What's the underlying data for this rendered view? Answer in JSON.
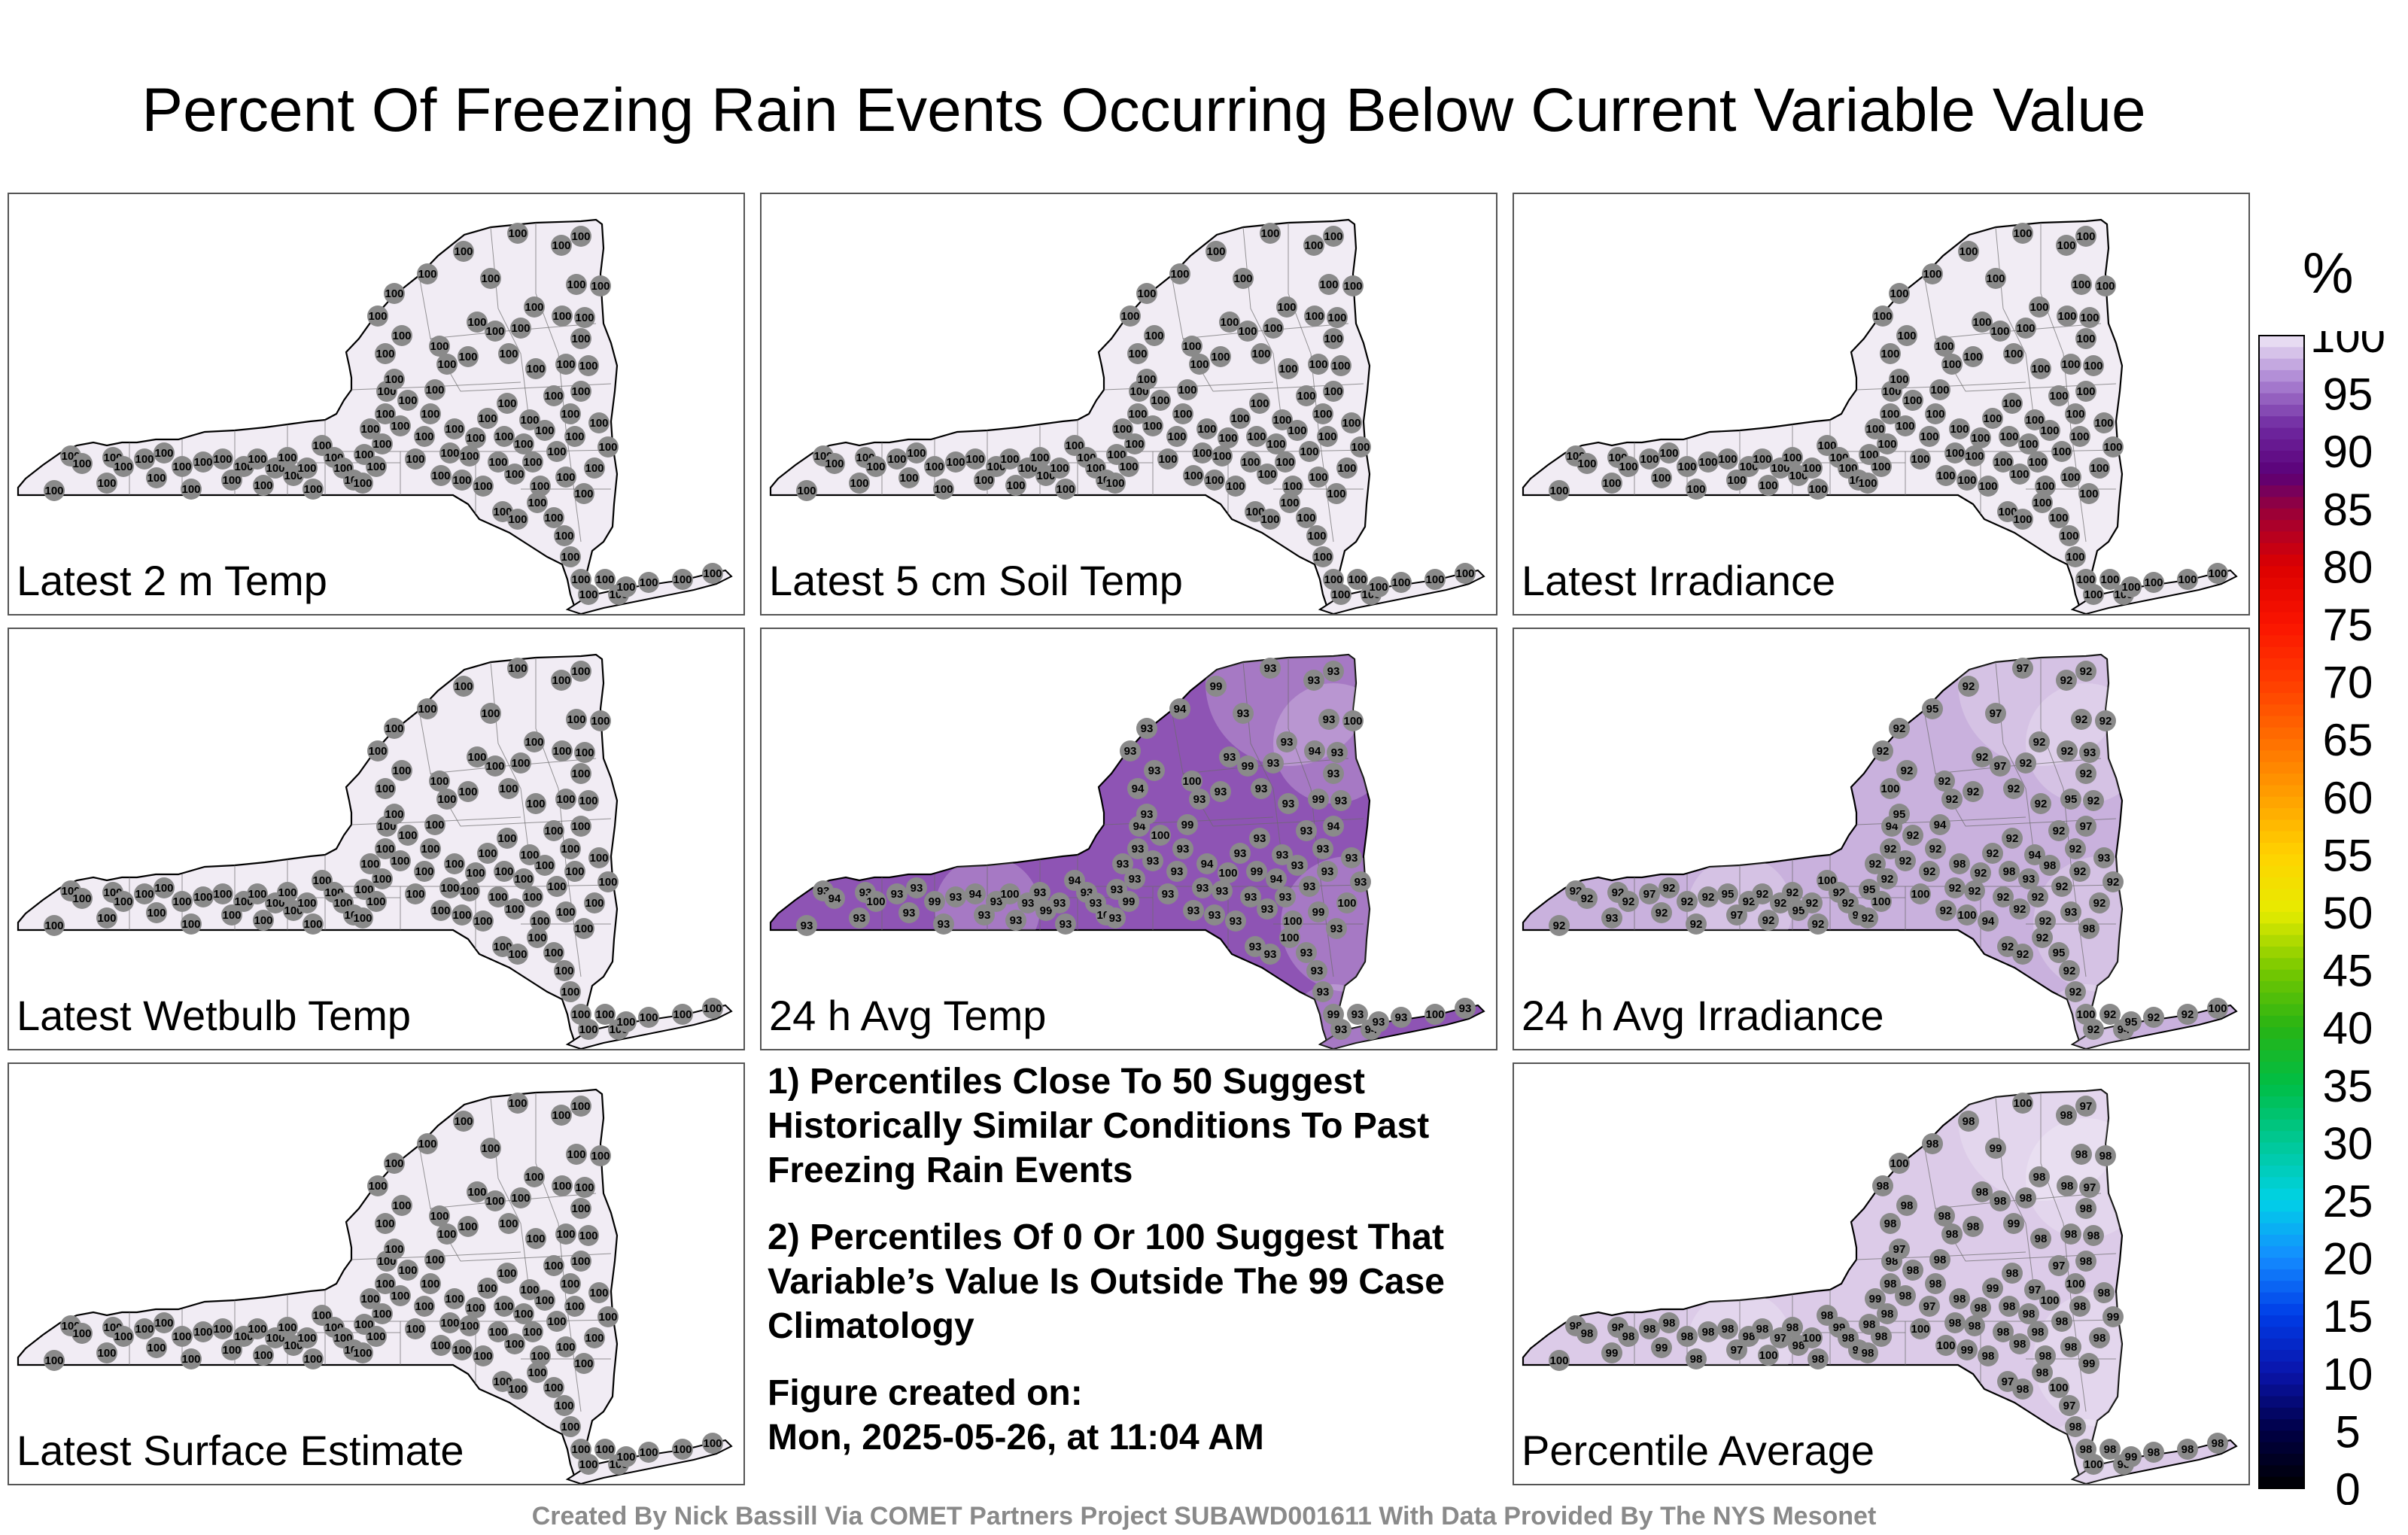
{
  "title": "Percent Of Freezing Rain Events Occurring Below Current Variable Value",
  "footer": "Created By Nick Bassill Via COMET Partners Project SUBAWD001611 With Data Provided By The NYS Mesonet",
  "notes": {
    "note1": "1) Percentiles Close To 50 Suggest Historically Similar Conditions To Past Freezing Rain Events",
    "note2": "2) Percentiles Of 0 Or 100 Suggest That Variable’s Value Is Outside The 99 Case Climatology",
    "created_label": "Figure created on:",
    "created_value": "Mon, 2025-05-26, at 11:04 AM"
  },
  "colorbar": {
    "unit": "%",
    "ticks": [
      "100",
      "95",
      "90",
      "85",
      "80",
      "75",
      "70",
      "65",
      "60",
      "55",
      "50",
      "45",
      "40",
      "35",
      "30",
      "25",
      "20",
      "15",
      "10",
      "5",
      "0"
    ],
    "range": [
      0,
      100
    ]
  },
  "chart_data": [
    {
      "type": "map",
      "label": "Latest 2 m Temp",
      "fill": "#f1ecf4",
      "station_values": [
        100
      ],
      "typical_value": 100
    },
    {
      "type": "map",
      "label": "Latest 5 cm Soil Temp",
      "fill": "#f1ecf4",
      "station_values": [
        100
      ],
      "typical_value": 100
    },
    {
      "type": "map",
      "label": "Latest Irradiance",
      "fill": "#f1ecf4",
      "station_values": [
        100
      ],
      "typical_value": 100
    },
    {
      "type": "map",
      "label": "Latest Wetbulb Temp",
      "fill": "#f1ecf4",
      "station_values": [
        100
      ],
      "typical_value": 100
    },
    {
      "type": "map",
      "label": "24 h Avg Temp",
      "fill": "#8e54b4",
      "station_values": [
        93,
        94,
        96,
        99,
        100
      ],
      "typical_value": 93
    },
    {
      "type": "map",
      "label": "24 h Avg Irradiance",
      "fill": "#c9b1dd",
      "station_values": [
        92,
        93,
        94,
        95,
        97,
        98,
        100
      ],
      "typical_value": 92
    },
    {
      "type": "map",
      "label": "Latest Surface Estimate",
      "fill": "#f1ecf4",
      "station_values": [
        100
      ],
      "typical_value": 100
    },
    {
      "type": "map",
      "label": "Percentile Average",
      "fill": "#dccbe8",
      "station_values": [
        97,
        98,
        99,
        100
      ],
      "typical_value": 98
    }
  ]
}
